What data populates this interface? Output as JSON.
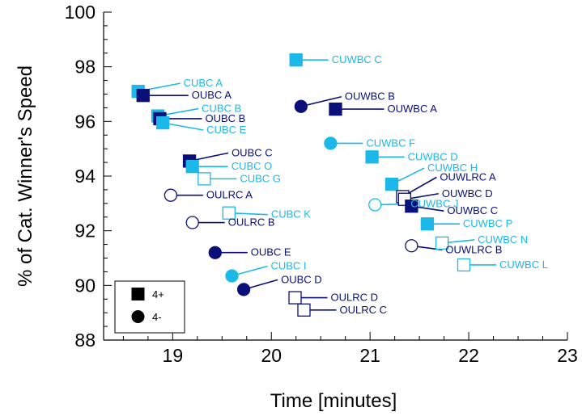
{
  "chart_data": {
    "type": "scatter",
    "title": "",
    "xlabel": "Time [minutes]",
    "ylabel": "% of Cat. Winner's Speed",
    "xlim": [
      18.3,
      23
    ],
    "ylim": [
      88,
      100
    ],
    "xticks": [
      19,
      20,
      21,
      22,
      23
    ],
    "yticks": [
      88,
      90,
      92,
      94,
      96,
      98,
      100
    ],
    "grid": false,
    "colors": {
      "dark": "#0a0f7a",
      "light": "#1cb8ea"
    },
    "legend": {
      "position": "bottom-left",
      "entries": [
        {
          "label": "4+",
          "marker": "square"
        },
        {
          "label": "4-",
          "marker": "circle"
        }
      ]
    },
    "points": [
      {
        "label": "CUWBC C",
        "x": 20.25,
        "y": 98.25,
        "shape": "square",
        "color": "light",
        "filled": true
      },
      {
        "label": "CUBC A",
        "x": 18.65,
        "y": 97.1,
        "shape": "square",
        "color": "light",
        "filled": true
      },
      {
        "label": "OUBC A",
        "x": 18.7,
        "y": 96.95,
        "shape": "square",
        "color": "dark",
        "filled": true
      },
      {
        "label": "CUBC B",
        "x": 18.85,
        "y": 96.2,
        "shape": "square",
        "color": "light",
        "filled": true
      },
      {
        "label": "OUBC B",
        "x": 18.87,
        "y": 96.1,
        "shape": "square",
        "color": "dark",
        "filled": true
      },
      {
        "label": "CUBC E",
        "x": 18.9,
        "y": 95.95,
        "shape": "square",
        "color": "light",
        "filled": true
      },
      {
        "label": "OUWBC B",
        "x": 20.3,
        "y": 96.55,
        "shape": "circle",
        "color": "dark",
        "filled": true
      },
      {
        "label": "OUWBC A",
        "x": 20.65,
        "y": 96.45,
        "shape": "square",
        "color": "dark",
        "filled": true
      },
      {
        "label": "CUWBC F",
        "x": 20.6,
        "y": 95.2,
        "shape": "circle",
        "color": "light",
        "filled": true
      },
      {
        "label": "CUWBC D",
        "x": 21.02,
        "y": 94.7,
        "shape": "square",
        "color": "light",
        "filled": true
      },
      {
        "label": "OUBC C",
        "x": 19.17,
        "y": 94.55,
        "shape": "square",
        "color": "dark",
        "filled": true
      },
      {
        "label": "CUBC O",
        "x": 19.2,
        "y": 94.35,
        "shape": "square",
        "color": "light",
        "filled": true
      },
      {
        "label": "CUBC G",
        "x": 19.32,
        "y": 93.9,
        "shape": "square",
        "color": "light",
        "filled": false
      },
      {
        "label": "CUWBC H",
        "x": 21.22,
        "y": 93.7,
        "shape": "square",
        "color": "light",
        "filled": true
      },
      {
        "label": "OUWLRC A",
        "x": 21.33,
        "y": 93.25,
        "shape": "square",
        "color": "dark",
        "filled": false
      },
      {
        "label": "OUWBC D",
        "x": 21.35,
        "y": 93.15,
        "shape": "square",
        "color": "dark",
        "filled": false
      },
      {
        "label": "OULRC A",
        "x": 18.98,
        "y": 93.3,
        "shape": "circle",
        "color": "dark",
        "filled": false
      },
      {
        "label": "CUWBC J",
        "x": 21.05,
        "y": 92.95,
        "shape": "circle",
        "color": "light",
        "filled": false
      },
      {
        "label": "OUWBC C",
        "x": 21.42,
        "y": 92.9,
        "shape": "square",
        "color": "dark",
        "filled": true
      },
      {
        "label": "CUBC K",
        "x": 19.57,
        "y": 92.65,
        "shape": "square",
        "color": "light",
        "filled": false
      },
      {
        "label": "OULRC B",
        "x": 19.2,
        "y": 92.3,
        "shape": "circle",
        "color": "dark",
        "filled": false
      },
      {
        "label": "CUWBC P",
        "x": 21.58,
        "y": 92.25,
        "shape": "square",
        "color": "light",
        "filled": true
      },
      {
        "label": "CUWBC N",
        "x": 21.73,
        "y": 91.55,
        "shape": "square",
        "color": "light",
        "filled": false
      },
      {
        "label": "OUWLRC B",
        "x": 21.42,
        "y": 91.45,
        "shape": "circle",
        "color": "dark",
        "filled": false
      },
      {
        "label": "OUBC E",
        "x": 19.43,
        "y": 91.2,
        "shape": "circle",
        "color": "dark",
        "filled": true
      },
      {
        "label": "CUWBC L",
        "x": 21.95,
        "y": 90.75,
        "shape": "square",
        "color": "light",
        "filled": false
      },
      {
        "label": "CUBC I",
        "x": 19.6,
        "y": 90.35,
        "shape": "circle",
        "color": "light",
        "filled": true
      },
      {
        "label": "OUBC D",
        "x": 19.72,
        "y": 89.85,
        "shape": "circle",
        "color": "dark",
        "filled": true
      },
      {
        "label": "OULRC D",
        "x": 20.24,
        "y": 89.55,
        "shape": "square",
        "color": "dark",
        "filled": false
      },
      {
        "label": "OULRC C",
        "x": 20.33,
        "y": 89.1,
        "shape": "square",
        "color": "dark",
        "filled": false
      }
    ]
  }
}
